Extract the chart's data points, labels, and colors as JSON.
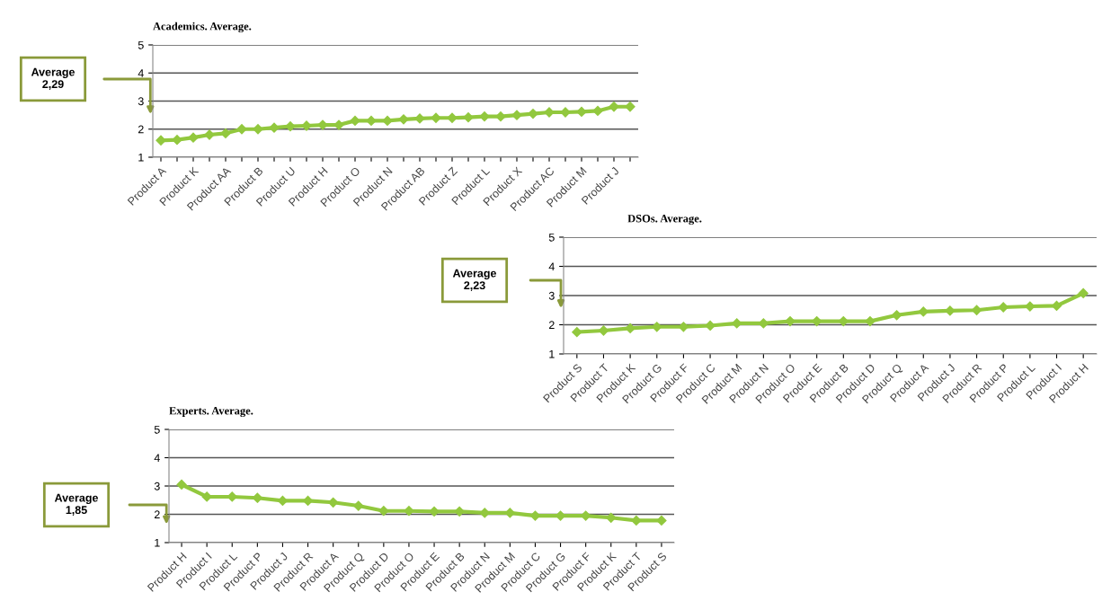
{
  "chart_data": [
    {
      "type": "line",
      "title": "Academics. Average.",
      "categories": [
        "Product A",
        null,
        "Product K",
        null,
        "Product AA",
        null,
        "Product B",
        null,
        "Product U",
        null,
        "Product H",
        null,
        "Product O",
        null,
        "Product N",
        null,
        "Product AB",
        null,
        "Product Z",
        null,
        "Product L",
        null,
        "Product X",
        null,
        "Product AC",
        null,
        "Product M",
        null,
        "Product J",
        null
      ],
      "series": [
        {
          "color": "#92c83e",
          "values": [
            1.6,
            1.62,
            1.7,
            1.8,
            1.85,
            2.0,
            2.0,
            2.05,
            2.1,
            2.12,
            2.15,
            2.15,
            2.3,
            2.3,
            2.3,
            2.35,
            2.38,
            2.4,
            2.4,
            2.42,
            2.45,
            2.45,
            2.5,
            2.55,
            2.6,
            2.6,
            2.62,
            2.65,
            2.8,
            2.8
          ]
        }
      ],
      "ylim": [
        1,
        5
      ],
      "yticks": [
        1,
        2,
        3,
        4,
        5
      ],
      "grid": "y",
      "marker": "diamond",
      "line_style": "solid",
      "annotations": [
        "Average\n2,29"
      ]
    },
    {
      "type": "line",
      "title": "DSOs. Average.",
      "categories": [
        "Product S",
        "Product T",
        "Product K",
        "Product G",
        "Product F",
        "Product C",
        "Product M",
        "Product N",
        "Product O",
        "Product E",
        "Product B",
        "Product D",
        "Product Q",
        "Product A",
        "Product J",
        "Product R",
        "Product P",
        "Product L",
        "Product I",
        "Product H"
      ],
      "series": [
        {
          "color": "#92c83e",
          "values": [
            1.75,
            1.8,
            1.88,
            1.93,
            1.93,
            1.97,
            2.05,
            2.05,
            2.12,
            2.12,
            2.12,
            2.12,
            2.33,
            2.45,
            2.48,
            2.5,
            2.6,
            2.63,
            2.65,
            3.08
          ]
        }
      ],
      "ylim": [
        1,
        5
      ],
      "yticks": [
        1,
        2,
        3,
        4,
        5
      ],
      "grid": "y",
      "marker": "diamond",
      "line_style": "solid",
      "annotations": [
        "Average\n2,23"
      ]
    },
    {
      "type": "line",
      "title": "Experts. Average.",
      "categories": [
        "Product H",
        "Product I",
        "Product L",
        "Product P",
        "Product J",
        "Product R",
        "Product A",
        "Product Q",
        "Product D",
        "Product O",
        "Product E",
        "Product B",
        "Product N",
        "Product M",
        "Product C",
        "Product G",
        "Product F",
        "Product K",
        "Product T",
        "Product S"
      ],
      "series": [
        {
          "color": "#92c83e",
          "values": [
            3.05,
            2.62,
            2.62,
            2.58,
            2.48,
            2.48,
            2.42,
            2.3,
            2.12,
            2.12,
            2.1,
            2.1,
            2.05,
            2.05,
            1.95,
            1.95,
            1.95,
            1.88,
            1.78,
            1.78
          ]
        }
      ],
      "ylim": [
        1,
        5
      ],
      "yticks": [
        1,
        2,
        3,
        4,
        5
      ],
      "grid": "y",
      "marker": "diamond",
      "line_style": "solid",
      "annotations": [
        "Average\n1,85"
      ]
    }
  ]
}
